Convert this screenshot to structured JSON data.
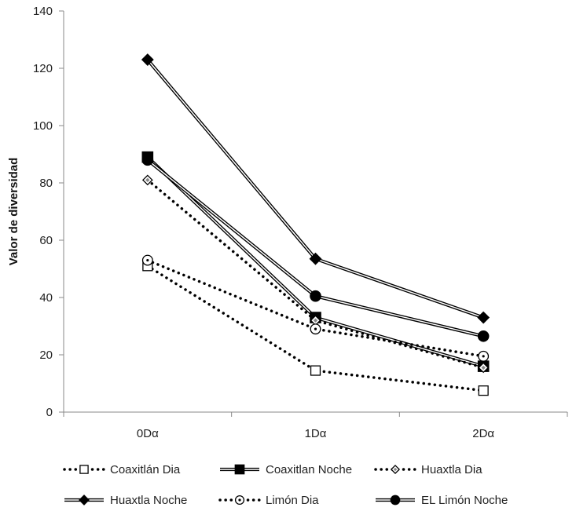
{
  "chart_data": {
    "type": "line",
    "title": "",
    "xlabel": "",
    "ylabel": "Valor de diversidad",
    "categories": [
      "0Dα",
      "1Dα",
      "2Dα"
    ],
    "ylim": [
      0,
      140
    ],
    "yticks": [
      0,
      20,
      40,
      60,
      80,
      100,
      120,
      140
    ],
    "grid": "horizontal-none",
    "legend_position": "bottom",
    "series": [
      {
        "name": "Coaxitlán Dia",
        "values": [
          51,
          14.5,
          7.5
        ],
        "line": "dotted",
        "marker": "square-open",
        "color": "#000000"
      },
      {
        "name": "Coaxitlan Noche",
        "values": [
          89,
          33,
          16
        ],
        "line": "double",
        "marker": "square-filled",
        "color": "#000000"
      },
      {
        "name": "Huaxtla Dia",
        "values": [
          81,
          32,
          15.5
        ],
        "line": "dotted",
        "marker": "diamond-open",
        "color": "#000000"
      },
      {
        "name": "Huaxtla Noche",
        "values": [
          123,
          53.5,
          33
        ],
        "line": "double",
        "marker": "diamond-filled",
        "color": "#000000"
      },
      {
        "name": "Limón Dia",
        "values": [
          53,
          29,
          19.5
        ],
        "line": "dotted",
        "marker": "circle-open",
        "color": "#000000"
      },
      {
        "name": "EL Limón Noche",
        "values": [
          88,
          40.5,
          26.5
        ],
        "line": "double",
        "marker": "circle-filled",
        "color": "#000000"
      }
    ]
  }
}
